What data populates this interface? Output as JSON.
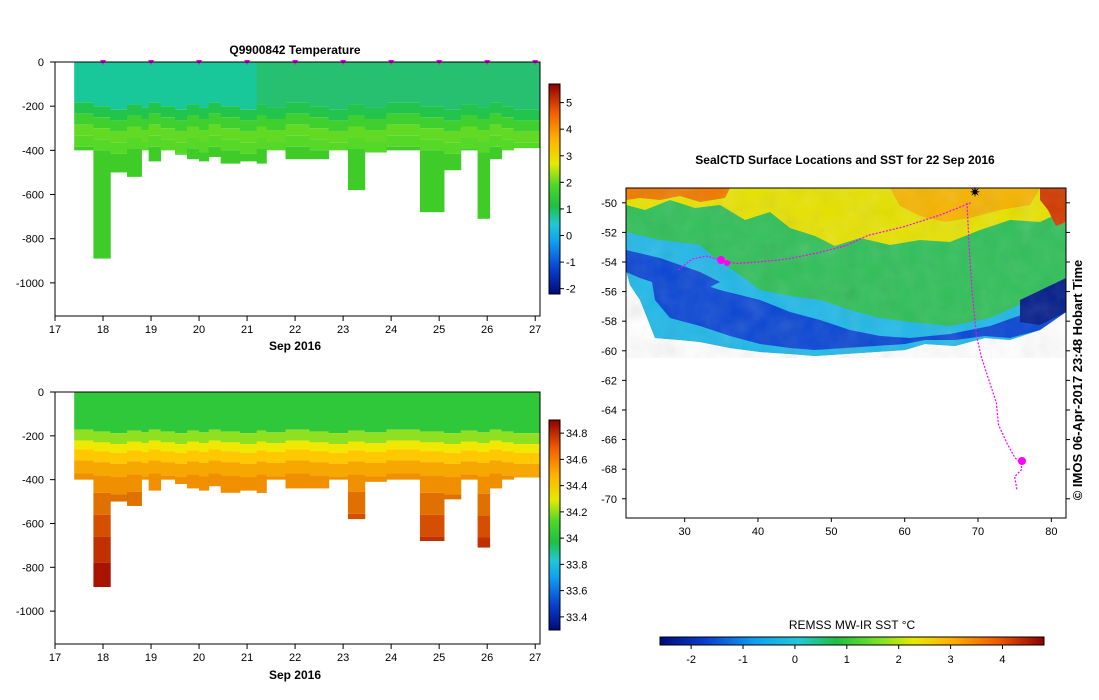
{
  "chart_data": [
    {
      "type": "heatmap",
      "title": "Q9900842  Temperature",
      "xlabel": "Sep 2016",
      "ylabel": "",
      "xlim": [
        17,
        27.1
      ],
      "ylim": [
        -1150,
        0
      ],
      "x_ticks": [
        "17",
        "18",
        "19",
        "20",
        "21",
        "22",
        "23",
        "24",
        "25",
        "26",
        "27"
      ],
      "y_ticks": [
        "0",
        "-200",
        "-400",
        "-600",
        "-800",
        "-1000"
      ],
      "colorbar": {
        "ticks": [
          "-2",
          "-1",
          "0",
          "1",
          "2",
          "3",
          "4",
          "5"
        ],
        "range": [
          -2.2,
          5.7
        ]
      },
      "profile_markers_x": [
        18,
        19,
        20,
        21,
        22,
        23,
        24,
        25,
        26,
        27
      ],
      "profiles": [
        {
          "t0": 17.4,
          "t1": 17.8,
          "depth": 400
        },
        {
          "t0": 17.8,
          "t1": 18.15,
          "depth": 890
        },
        {
          "t0": 18.15,
          "t1": 18.5,
          "depth": 500
        },
        {
          "t0": 18.5,
          "t1": 18.8,
          "depth": 520
        },
        {
          "t0": 18.8,
          "t1": 18.95,
          "depth": 400
        },
        {
          "t0": 18.95,
          "t1": 19.2,
          "depth": 450
        },
        {
          "t0": 19.2,
          "t1": 19.5,
          "depth": 400
        },
        {
          "t0": 19.5,
          "t1": 19.75,
          "depth": 420
        },
        {
          "t0": 19.75,
          "t1": 20.0,
          "depth": 440
        },
        {
          "t0": 20.0,
          "t1": 20.2,
          "depth": 450
        },
        {
          "t0": 20.2,
          "t1": 20.45,
          "depth": 430
        },
        {
          "t0": 20.45,
          "t1": 20.85,
          "depth": 460
        },
        {
          "t0": 20.85,
          "t1": 21.2,
          "depth": 450
        },
        {
          "t0": 21.2,
          "t1": 21.4,
          "depth": 460
        },
        {
          "t0": 21.4,
          "t1": 21.8,
          "depth": 400
        },
        {
          "t0": 21.8,
          "t1": 22.3,
          "depth": 440
        },
        {
          "t0": 22.3,
          "t1": 22.7,
          "depth": 440
        },
        {
          "t0": 22.7,
          "t1": 23.1,
          "depth": 400
        },
        {
          "t0": 23.1,
          "t1": 23.45,
          "depth": 580
        },
        {
          "t0": 23.45,
          "t1": 23.9,
          "depth": 410
        },
        {
          "t0": 23.9,
          "t1": 24.6,
          "depth": 400
        },
        {
          "t0": 24.6,
          "t1": 25.1,
          "depth": 680
        },
        {
          "t0": 25.1,
          "t1": 25.45,
          "depth": 490
        },
        {
          "t0": 25.45,
          "t1": 25.8,
          "depth": 400
        },
        {
          "t0": 25.8,
          "t1": 26.05,
          "depth": 710
        },
        {
          "t0": 26.05,
          "t1": 26.3,
          "depth": 440
        },
        {
          "t0": 26.3,
          "t1": 26.55,
          "depth": 400
        },
        {
          "t0": 26.55,
          "t1": 27.1,
          "depth": 390
        }
      ]
    },
    {
      "type": "heatmap",
      "title": "",
      "xlabel": "Sep 2016",
      "ylabel": "",
      "xlim": [
        17,
        27.1
      ],
      "ylim": [
        -1150,
        0
      ],
      "x_ticks": [
        "17",
        "18",
        "19",
        "20",
        "21",
        "22",
        "23",
        "24",
        "25",
        "26",
        "27"
      ],
      "y_ticks": [
        "0",
        "-200",
        "-400",
        "-600",
        "-800",
        "-1000"
      ],
      "colorbar": {
        "ticks": [
          "33.4",
          "33.6",
          "33.8",
          "34",
          "34.2",
          "34.4",
          "34.6",
          "34.8"
        ],
        "range": [
          33.3,
          34.9
        ]
      }
    },
    {
      "type": "heatmap",
      "title": "SealCTD Surface Locations and SST for 22 Sep 2016",
      "xlim": [
        22,
        82
      ],
      "ylim": [
        -71.3,
        -49
      ],
      "x_ticks": [
        "30",
        "40",
        "50",
        "60",
        "70",
        "80"
      ],
      "y_ticks": [
        "-50",
        "-52",
        "-54",
        "-56",
        "-58",
        "-60",
        "-62",
        "-64",
        "-66",
        "-68",
        "-70"
      ],
      "colorbar": {
        "label": "REMSS MW-IR SST °C",
        "ticks": [
          "-2",
          "-1",
          "0",
          "1",
          "2",
          "3",
          "4"
        ],
        "range": [
          -2.6,
          4.8
        ]
      },
      "track": [
        [
          69,
          -50
        ],
        [
          65,
          -50.8
        ],
        [
          60,
          -51.6
        ],
        [
          55,
          -52.2
        ],
        [
          52,
          -52.9
        ],
        [
          48,
          -53.4
        ],
        [
          44,
          -53.8
        ],
        [
          40,
          -54
        ],
        [
          37,
          -54.1
        ],
        [
          35,
          -53.9
        ],
        [
          33,
          -53.6
        ],
        [
          31,
          -53.8
        ],
        [
          29,
          -54.6
        ]
      ],
      "track2": [
        [
          68.5,
          -50
        ],
        [
          68.8,
          -53
        ],
        [
          69.2,
          -56
        ],
        [
          69.8,
          -59
        ],
        [
          70.5,
          -60.5
        ],
        [
          71.5,
          -62
        ],
        [
          72.5,
          -63.5
        ],
        [
          72.8,
          -65
        ],
        [
          74,
          -66.3
        ],
        [
          75,
          -67.2
        ],
        [
          75.8,
          -67.6
        ],
        [
          76,
          -68
        ],
        [
          75,
          -68.5
        ],
        [
          75.3,
          -69.4
        ]
      ]
    }
  ],
  "watermark": "© IMOS 06-Apr-2017 23:48 Hobart Time",
  "colors": {
    "marker": "#ff00ff",
    "track": "#ff00ff"
  }
}
